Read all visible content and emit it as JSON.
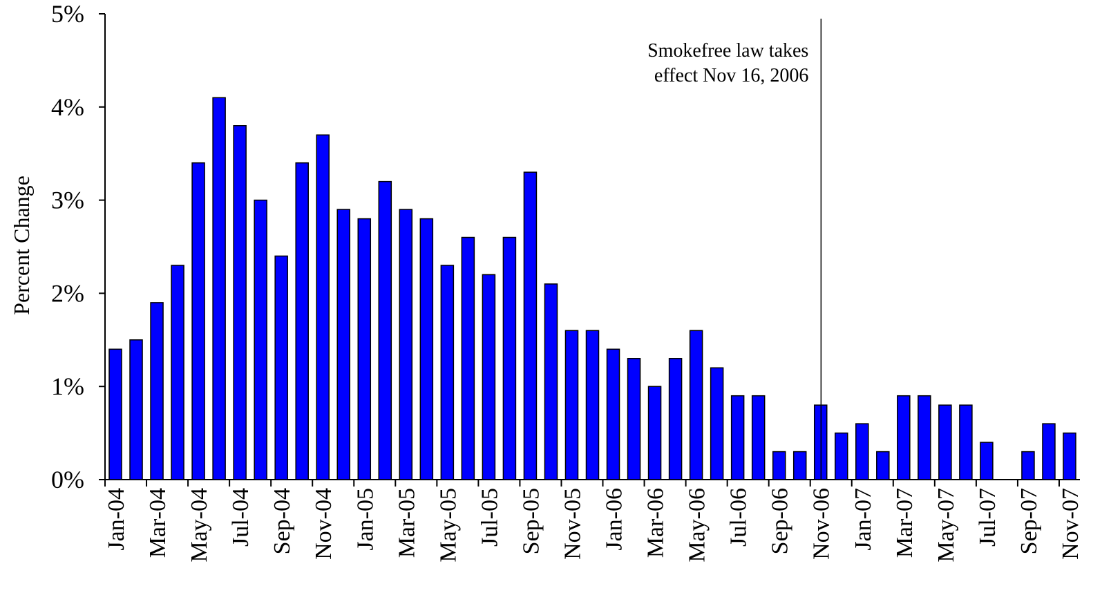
{
  "chart_data": {
    "type": "bar",
    "y_label": "Percent Change",
    "categories": [
      "Jan-04",
      null,
      "Mar-04",
      null,
      "May-04",
      null,
      "Jul-04",
      null,
      "Sep-04",
      null,
      "Nov-04",
      null,
      "Jan-05",
      null,
      "Mar-05",
      null,
      "May-05",
      null,
      "Jul-05",
      null,
      "Sep-05",
      null,
      "Nov-05",
      null,
      "Jan-06",
      null,
      "Mar-06",
      null,
      "May-06",
      null,
      "Jul-06",
      null,
      "Sep-06",
      null,
      "Nov-06",
      null,
      "Jan-07",
      null,
      "Mar-07",
      null,
      "May-07",
      null,
      "Jul-07",
      null,
      "Sep-07",
      null,
      "Nov-07"
    ],
    "values": [
      1.4,
      1.5,
      1.9,
      2.3,
      3.4,
      4.1,
      3.8,
      3.0,
      2.4,
      3.4,
      3.7,
      2.9,
      2.8,
      3.2,
      2.9,
      2.8,
      2.3,
      2.6,
      2.2,
      2.6,
      3.3,
      2.1,
      1.6,
      1.6,
      1.4,
      1.3,
      1.0,
      1.3,
      1.6,
      1.2,
      0.9,
      0.9,
      0.3,
      0.3,
      0.8,
      0.5,
      0.6,
      0.3,
      0.9,
      0.9,
      0.8,
      0.8,
      0.4,
      0,
      0.3,
      0.6,
      0.5
    ],
    "color": "#0000ff",
    "ylim": [
      0,
      5
    ],
    "yticks": [
      {
        "value": 0,
        "label": "0%"
      },
      {
        "value": 1,
        "label": "1%"
      },
      {
        "value": 2,
        "label": "2%"
      },
      {
        "value": 3,
        "label": "3%"
      },
      {
        "value": 4,
        "label": "4%"
      },
      {
        "value": 5,
        "label": "5%"
      }
    ],
    "grid": false,
    "annotation": {
      "text": [
        "Smokefree law takes",
        "effect Nov 16, 2006"
      ],
      "x": 34.52
    }
  }
}
